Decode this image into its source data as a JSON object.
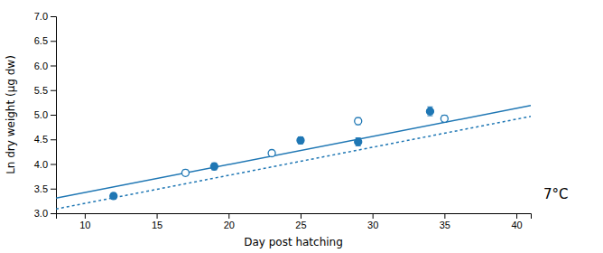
{
  "chart_data": {
    "type": "scatter",
    "xlabel": "Day post hatching",
    "ylabel": "Ln dry weight (µg dw)",
    "annotation": "7°C",
    "xlim": [
      8,
      41
    ],
    "ylim": [
      3.0,
      7.0
    ],
    "xticks": [
      10,
      15,
      20,
      25,
      30,
      35,
      40
    ],
    "yticks": [
      {
        "value": 3.0,
        "label": "3.0"
      },
      3.5,
      {
        "value": 4.0,
        "label": "4.0"
      },
      4.5,
      {
        "value": 5.0,
        "label": "5.0"
      },
      5.5,
      {
        "value": 6.0,
        "label": "6.0"
      },
      6.5,
      {
        "value": 7.0,
        "label": "7.0"
      }
    ],
    "series": [
      {
        "type": "scatter",
        "marker": "filled-circle",
        "x": [
          12,
          19,
          25,
          29,
          34
        ],
        "values": [
          3.35,
          3.95,
          4.48,
          4.45,
          5.07
        ],
        "errors": [
          0.06,
          0.07,
          0.07,
          0.08,
          0.09
        ]
      },
      {
        "type": "scatter",
        "marker": "open-circle",
        "x": [
          17,
          23,
          29,
          35
        ],
        "values": [
          3.82,
          4.22,
          4.87,
          4.92
        ],
        "errors": [
          0.06,
          0.06,
          0.07,
          0.07
        ]
      },
      {
        "type": "line",
        "line_style": "solid",
        "x": [
          8,
          41
        ],
        "values": [
          3.306,
          5.187
        ]
      },
      {
        "type": "line",
        "line_style": "dotted",
        "x": [
          8,
          41
        ],
        "values": [
          3.086,
          4.967
        ]
      }
    ]
  }
}
